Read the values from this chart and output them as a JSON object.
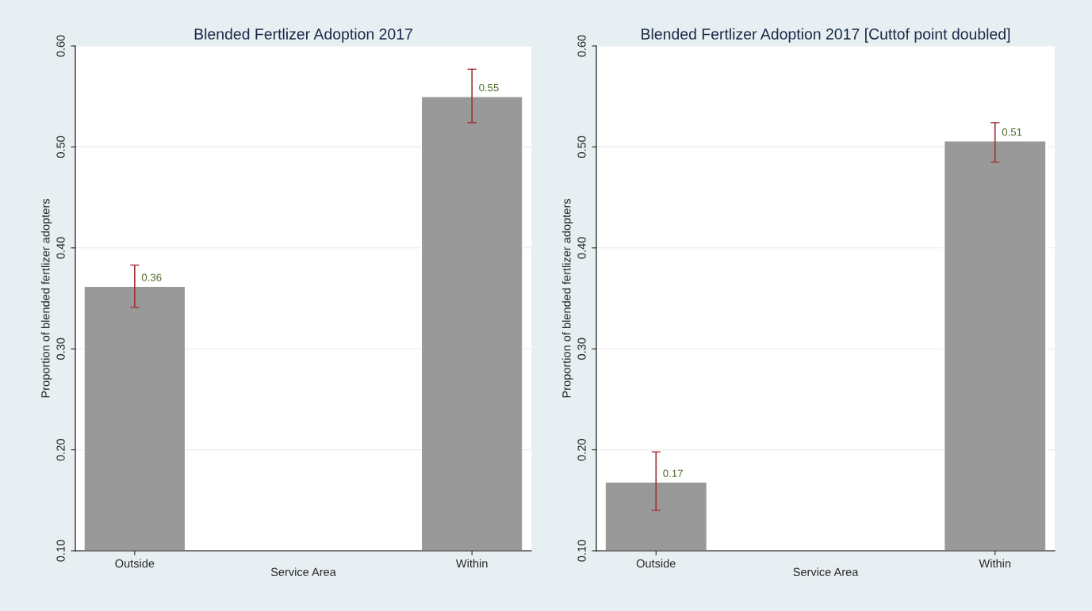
{
  "chart_data": [
    {
      "type": "bar",
      "title": "Blended Fertlizer Adoption 2017",
      "xlabel": "Service Area",
      "ylabel": "Proportion of blended fertlizer adopters",
      "categories": [
        "Outside",
        "Within"
      ],
      "series": [
        {
          "color": "#999999",
          "values": [
            0.362,
            0.55
          ],
          "errors": [
            [
              0.341,
              0.383
            ],
            [
              0.524,
              0.577
            ]
          ],
          "value_labels": [
            "0.36",
            "0.55"
          ]
        }
      ],
      "ylim": [
        0.1,
        0.6
      ],
      "yticks": [
        {
          "value": 0.1,
          "label": "0.10"
        },
        {
          "value": 0.2,
          "label": "0.20"
        },
        {
          "value": 0.3,
          "label": "0.30"
        },
        {
          "value": 0.4,
          "label": "0.40"
        },
        {
          "value": 0.5,
          "label": "0.50"
        },
        {
          "value": 0.6,
          "label": "0.60"
        }
      ],
      "grid": "y"
    },
    {
      "type": "bar",
      "title": "Blended Fertlizer Adoption 2017 [Cuttof point doubled]",
      "xlabel": "Service Area",
      "ylabel": "Proportion of blended fertlizer adopters",
      "categories": [
        "Outside",
        "Within"
      ],
      "series": [
        {
          "color": "#999999",
          "values": [
            0.168,
            0.506
          ],
          "errors": [
            [
              0.14,
              0.198
            ],
            [
              0.485,
              0.524
            ]
          ],
          "value_labels": [
            "0.17",
            "0.51"
          ]
        }
      ],
      "ylim": [
        0.1,
        0.6
      ],
      "yticks": [
        {
          "value": 0.1,
          "label": "0.10"
        },
        {
          "value": 0.2,
          "label": "0.20"
        },
        {
          "value": 0.3,
          "label": "0.30"
        },
        {
          "value": 0.4,
          "label": "0.40"
        },
        {
          "value": 0.5,
          "label": "0.50"
        },
        {
          "value": 0.6,
          "label": "0.60"
        }
      ],
      "grid": "y"
    }
  ]
}
